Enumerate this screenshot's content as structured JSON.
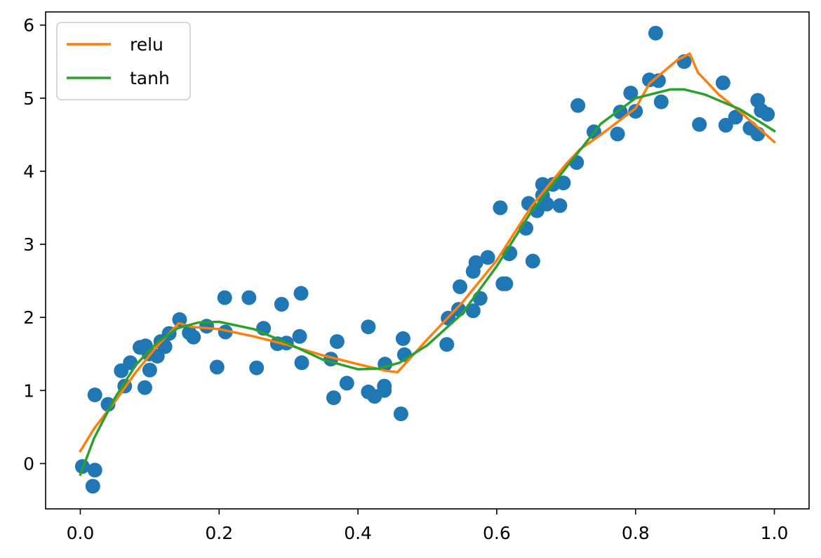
{
  "chart_data": {
    "type": "scatter",
    "title": "",
    "xlabel": "",
    "ylabel": "",
    "xlim": [
      -0.05,
      1.05
    ],
    "ylim": [
      -0.62,
      6.18
    ],
    "xticks": [
      0.0,
      0.2,
      0.4,
      0.6,
      0.8,
      1.0
    ],
    "xtick_labels": [
      "0.0",
      "0.2",
      "0.4",
      "0.6",
      "0.8",
      "1.0"
    ],
    "yticks": [
      0,
      1,
      2,
      3,
      4,
      5,
      6
    ],
    "ytick_labels": [
      "0",
      "1",
      "2",
      "3",
      "4",
      "5",
      "6"
    ],
    "grid": false,
    "legend_position": "upper-left",
    "series": [
      {
        "name": "",
        "type": "scatter",
        "color": "#1f77b4",
        "points": [
          [
            0.003,
            -0.04
          ],
          [
            0.018,
            -0.31
          ],
          [
            0.021,
            -0.09
          ],
          [
            0.021,
            0.94
          ],
          [
            0.04,
            0.81
          ],
          [
            0.059,
            1.27
          ],
          [
            0.064,
            1.06
          ],
          [
            0.072,
            1.38
          ],
          [
            0.086,
            1.59
          ],
          [
            0.093,
            1.04
          ],
          [
            0.094,
            1.61
          ],
          [
            0.099,
            1.5
          ],
          [
            0.1,
            1.28
          ],
          [
            0.111,
            1.47
          ],
          [
            0.116,
            1.67
          ],
          [
            0.122,
            1.6
          ],
          [
            0.128,
            1.78
          ],
          [
            0.143,
            1.97
          ],
          [
            0.157,
            1.79
          ],
          [
            0.163,
            1.73
          ],
          [
            0.182,
            1.88
          ],
          [
            0.197,
            1.32
          ],
          [
            0.208,
            2.27
          ],
          [
            0.209,
            1.8
          ],
          [
            0.243,
            2.27
          ],
          [
            0.254,
            1.31
          ],
          [
            0.264,
            1.85
          ],
          [
            0.284,
            1.64
          ],
          [
            0.29,
            2.18
          ],
          [
            0.297,
            1.65
          ],
          [
            0.316,
            1.74
          ],
          [
            0.318,
            2.33
          ],
          [
            0.319,
            1.38
          ],
          [
            0.361,
            1.43
          ],
          [
            0.365,
            0.9
          ],
          [
            0.37,
            1.67
          ],
          [
            0.384,
            1.1
          ],
          [
            0.415,
            1.87
          ],
          [
            0.415,
            0.98
          ],
          [
            0.424,
            0.92
          ],
          [
            0.438,
            1.06
          ],
          [
            0.439,
            1.36
          ],
          [
            0.438,
            1.0
          ],
          [
            0.462,
            0.68
          ],
          [
            0.465,
            1.71
          ],
          [
            0.467,
            1.49
          ],
          [
            0.528,
            1.63
          ],
          [
            0.53,
            1.99
          ],
          [
            0.545,
            2.11
          ],
          [
            0.547,
            2.42
          ],
          [
            0.566,
            2.09
          ],
          [
            0.566,
            2.63
          ],
          [
            0.57,
            2.75
          ],
          [
            0.576,
            2.26
          ],
          [
            0.587,
            2.82
          ],
          [
            0.605,
            3.5
          ],
          [
            0.609,
            2.46
          ],
          [
            0.613,
            2.46
          ],
          [
            0.618,
            2.87
          ],
          [
            0.619,
            2.88
          ],
          [
            0.642,
            3.22
          ],
          [
            0.646,
            3.56
          ],
          [
            0.652,
            2.77
          ],
          [
            0.658,
            3.46
          ],
          [
            0.666,
            3.82
          ],
          [
            0.666,
            3.67
          ],
          [
            0.672,
            3.55
          ],
          [
            0.681,
            3.82
          ],
          [
            0.691,
            3.53
          ],
          [
            0.696,
            3.84
          ],
          [
            0.715,
            4.12
          ],
          [
            0.717,
            4.9
          ],
          [
            0.74,
            4.54
          ],
          [
            0.774,
            4.51
          ],
          [
            0.778,
            4.81
          ],
          [
            0.793,
            5.07
          ],
          [
            0.8,
            4.82
          ],
          [
            0.82,
            5.25
          ],
          [
            0.829,
            5.89
          ],
          [
            0.833,
            5.24
          ],
          [
            0.837,
            4.95
          ],
          [
            0.87,
            5.5
          ],
          [
            0.892,
            4.64
          ],
          [
            0.926,
            5.21
          ],
          [
            0.93,
            4.63
          ],
          [
            0.944,
            4.74
          ],
          [
            0.965,
            4.59
          ],
          [
            0.976,
            4.97
          ],
          [
            0.976,
            4.51
          ],
          [
            0.981,
            4.83
          ],
          [
            0.99,
            4.78
          ]
        ]
      },
      {
        "name": "relu",
        "type": "line",
        "color": "#ff7f0e",
        "x": [
          0.0,
          0.02,
          0.05,
          0.08,
          0.11,
          0.142,
          0.16,
          0.2,
          0.25,
          0.3,
          0.35,
          0.4,
          0.44,
          0.457,
          0.5,
          0.55,
          0.6,
          0.65,
          0.7,
          0.72,
          0.75,
          0.8,
          0.82,
          0.86,
          0.878,
          0.89,
          0.92,
          0.95,
          1.0
        ],
        "y": [
          0.17,
          0.48,
          0.85,
          1.25,
          1.6,
          1.92,
          1.87,
          1.84,
          1.74,
          1.62,
          1.48,
          1.36,
          1.27,
          1.25,
          1.7,
          2.2,
          2.78,
          3.52,
          4.1,
          4.3,
          4.5,
          4.86,
          5.2,
          5.52,
          5.61,
          5.35,
          5.05,
          4.82,
          4.4
        ]
      },
      {
        "name": "tanh",
        "type": "line",
        "color": "#2ca02c",
        "x": [
          0.0,
          0.02,
          0.05,
          0.08,
          0.11,
          0.14,
          0.17,
          0.2,
          0.25,
          0.3,
          0.35,
          0.4,
          0.43,
          0.46,
          0.5,
          0.55,
          0.6,
          0.65,
          0.7,
          0.75,
          0.8,
          0.85,
          0.87,
          0.9,
          0.95,
          1.0
        ],
        "y": [
          -0.15,
          0.35,
          0.9,
          1.35,
          1.65,
          1.85,
          1.93,
          1.94,
          1.84,
          1.64,
          1.42,
          1.29,
          1.3,
          1.38,
          1.62,
          2.05,
          2.7,
          3.45,
          4.05,
          4.65,
          5.0,
          5.12,
          5.12,
          5.05,
          4.85,
          4.55
        ]
      }
    ]
  }
}
